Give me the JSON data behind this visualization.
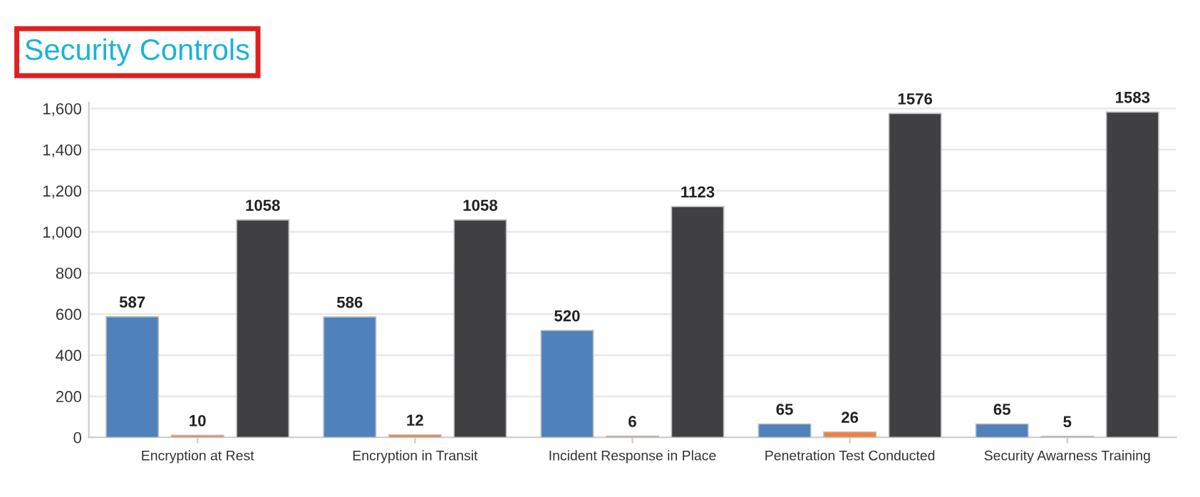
{
  "chart_data": {
    "type": "bar",
    "title": "Security Controls",
    "categories": [
      "Encryption at Rest",
      "Encryption in Transit",
      "Incident Response in Place",
      "Penetration Test Conducted",
      "Security Awarness Training"
    ],
    "series": [
      {
        "color": "#4f81bd",
        "values": [
          587,
          586,
          520,
          65,
          65
        ]
      },
      {
        "color": "#f07f3c",
        "values": [
          10,
          12,
          6,
          26,
          5
        ]
      },
      {
        "color": "#404043",
        "values": [
          1058,
          1058,
          1123,
          1576,
          1583
        ]
      }
    ],
    "ylim": [
      0,
      1630
    ],
    "yticks": [
      0,
      200,
      400,
      600,
      800,
      {
        "value": 1000,
        "label": "1,000"
      },
      {
        "value": 1200,
        "label": "1,200"
      },
      {
        "value": 1400,
        "label": "1,400"
      },
      {
        "value": 1600,
        "label": "1,600"
      }
    ],
    "grid": "y",
    "data_labels": true
  }
}
